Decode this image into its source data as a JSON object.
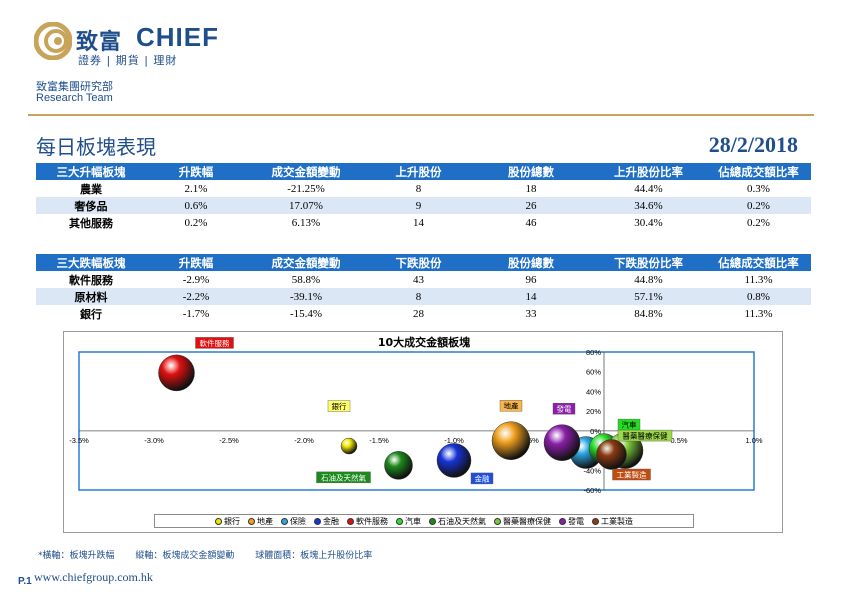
{
  "brand": {
    "name_cn": "致富",
    "name_en": "CHIEF",
    "tagline": "證券 | 期貨 | 理財"
  },
  "team": {
    "cn": "致富集團研究部",
    "en": "Research Team"
  },
  "page": {
    "title": "每日板塊表現",
    "date": "28/2/2018"
  },
  "colors": {
    "header_blue": "#1f6fc6",
    "row_alt": "#dbe7f5",
    "gold": "#c8a45a",
    "brand_blue": "#1f4e8c"
  },
  "gainers": {
    "headers": [
      "三大升幅板塊",
      "升跌幅",
      "成交金額變動",
      "上升股份",
      "股份總數",
      "上升股份比率",
      "佔總成交額比率"
    ],
    "rows": [
      [
        "農業",
        "2.1%",
        "-21.25%",
        "8",
        "18",
        "44.4%",
        "0.3%"
      ],
      [
        "奢侈品",
        "0.6%",
        "17.07%",
        "9",
        "26",
        "34.6%",
        "0.2%"
      ],
      [
        "其他服務",
        "0.2%",
        "6.13%",
        "14",
        "46",
        "30.4%",
        "0.2%"
      ]
    ]
  },
  "losers": {
    "headers": [
      "三大跌幅板塊",
      "升跌幅",
      "成交金額變動",
      "下跌股份",
      "股份總數",
      "下跌股份比率",
      "佔總成交額比率"
    ],
    "rows": [
      [
        "軟件服務",
        "-2.9%",
        "58.8%",
        "43",
        "96",
        "44.8%",
        "11.3%"
      ],
      [
        "原材料",
        "-2.2%",
        "-39.1%",
        "8",
        "14",
        "57.1%",
        "0.8%"
      ],
      [
        "銀行",
        "-1.7%",
        "-15.4%",
        "28",
        "33",
        "84.8%",
        "11.3%"
      ]
    ]
  },
  "chart_data": {
    "type": "scatter",
    "title": "10大成交金額板塊",
    "xlim": [
      -3.5,
      1.0
    ],
    "ylim": [
      -60,
      80
    ],
    "x_ticks": [
      "-3.5%",
      "-3.0%",
      "-2.5%",
      "-2.0%",
      "-1.5%",
      "-1.0%",
      "-0.5%",
      "0.0%",
      "0.5%",
      "1.0%"
    ],
    "y_ticks": [
      "-60%",
      "-40%",
      "-20%",
      "0%",
      "20%",
      "40%",
      "60%",
      "80%"
    ],
    "series": [
      {
        "name": "銀行",
        "x": -1.7,
        "y": -15.4,
        "r": 8,
        "color": "#f2e600",
        "label_bg": "#ffff66",
        "label_fg": "#000"
      },
      {
        "name": "地產",
        "x": -0.62,
        "y": -10,
        "r": 19,
        "color": "#f0a020",
        "label_bg": "#f7b54a",
        "label_fg": "#000"
      },
      {
        "name": "保險",
        "x": -0.12,
        "y": -22,
        "r": 16,
        "color": "#2aa5e0",
        "label_bg": "",
        "label_fg": ""
      },
      {
        "name": "金融",
        "x": -1.0,
        "y": -30,
        "r": 17,
        "color": "#1733d6",
        "label_bg": "#1f4fe0",
        "label_fg": "#fff"
      },
      {
        "name": "軟件服務",
        "x": -2.85,
        "y": 58.8,
        "r": 18,
        "color": "#e01010",
        "label_bg": "#e01010",
        "label_fg": "#fff"
      },
      {
        "name": "汽車",
        "x": 0.0,
        "y": -18,
        "r": 15,
        "color": "#2be02b",
        "label_bg": "#22dd22",
        "label_fg": "#000"
      },
      {
        "name": "石油及天然氣",
        "x": -1.37,
        "y": -35,
        "r": 14,
        "color": "#1d8a1d",
        "label_bg": "#1d8a1d",
        "label_fg": "#fff"
      },
      {
        "name": "醫藥醫療保健",
        "x": 0.14,
        "y": -20,
        "r": 18,
        "color": "#7cc83a",
        "label_bg": "#9bd84a",
        "label_fg": "#000"
      },
      {
        "name": "發電",
        "x": -0.28,
        "y": -12,
        "r": 18,
        "color": "#8a1fa8",
        "label_bg": "#8a1fa8",
        "label_fg": "#fff"
      },
      {
        "name": "工業製造",
        "x": 0.05,
        "y": -24,
        "r": 15,
        "color": "#8b3a12",
        "label_bg": "#c04c10",
        "label_fg": "#fff"
      }
    ]
  },
  "footnote": {
    "x_axis": "*橫軸：板塊升跌幅",
    "y_axis": "縱軸：板塊成交金額變動",
    "bubble": "球體面積：板塊上升股份比率"
  },
  "footer": {
    "page_no": "P.1",
    "website": "www.chiefgroup.com.hk"
  }
}
